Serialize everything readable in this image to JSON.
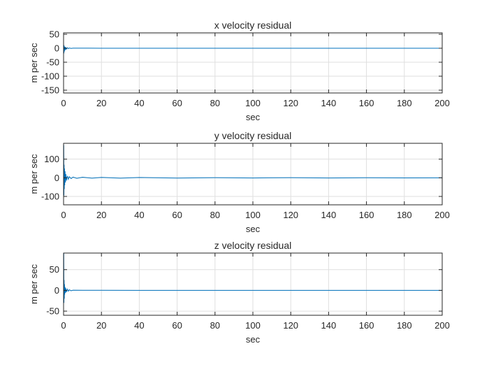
{
  "chart_data": [
    {
      "type": "line",
      "title": "x velocity residual",
      "xlabel": "sec",
      "ylabel": "m per sec",
      "xlim": [
        0,
        200
      ],
      "ylim": [
        -160,
        55
      ],
      "xticks": [
        0,
        20,
        40,
        60,
        80,
        100,
        120,
        140,
        160,
        180,
        200
      ],
      "yticks": [
        -150,
        -100,
        -50,
        0,
        50
      ],
      "grid": true,
      "series": [
        {
          "name": "x velocity residual",
          "color": "#0072BD",
          "x": [
            0,
            0.1,
            0.2,
            0.3,
            0.4,
            0.5,
            0.6,
            0.8,
            1.0,
            1.2,
            1.5,
            2.0,
            2.5,
            3,
            4,
            5,
            10,
            20,
            40,
            60,
            80,
            100,
            120,
            140,
            160,
            180,
            200
          ],
          "y": [
            0,
            12,
            -18,
            9,
            -12,
            6,
            -8,
            5,
            -6,
            3,
            -3,
            2,
            -1.5,
            1,
            -0.5,
            0.3,
            0.2,
            0.1,
            0,
            0,
            0,
            0,
            0,
            0,
            0,
            0,
            0
          ]
        }
      ]
    },
    {
      "type": "line",
      "title": "y velocity residual",
      "xlabel": "sec",
      "ylabel": "m per sec",
      "xlim": [
        0,
        200
      ],
      "ylim": [
        -145,
        185
      ],
      "xticks": [
        0,
        20,
        40,
        60,
        80,
        100,
        120,
        140,
        160,
        180,
        200
      ],
      "yticks": [
        -100,
        0,
        100
      ],
      "grid": true,
      "series": [
        {
          "name": "y velocity residual",
          "color": "#0072BD",
          "x": [
            0,
            0.1,
            0.2,
            0.3,
            0.4,
            0.5,
            0.6,
            0.8,
            1.0,
            1.2,
            1.5,
            2.0,
            2.5,
            3,
            4,
            5,
            7,
            10,
            15,
            20,
            30,
            40,
            60,
            80,
            100,
            120,
            140,
            160,
            180,
            200
          ],
          "y": [
            0,
            175,
            -95,
            70,
            -60,
            50,
            -40,
            35,
            -25,
            20,
            -15,
            10,
            -8,
            6,
            -4,
            4,
            -3,
            3,
            -2,
            2,
            -2,
            1.5,
            -1.5,
            1,
            -1,
            1,
            -1,
            0.5,
            -0.5,
            0
          ]
        }
      ]
    },
    {
      "type": "line",
      "title": "z velocity residual",
      "xlabel": "sec",
      "ylabel": "m per sec",
      "xlim": [
        0,
        200
      ],
      "ylim": [
        -60,
        90
      ],
      "xticks": [
        0,
        20,
        40,
        60,
        80,
        100,
        120,
        140,
        160,
        180,
        200
      ],
      "yticks": [
        -50,
        0,
        50
      ],
      "grid": true,
      "series": [
        {
          "name": "z velocity residual",
          "color": "#0072BD",
          "x": [
            0,
            0.1,
            0.2,
            0.3,
            0.4,
            0.5,
            0.6,
            0.8,
            1.0,
            1.2,
            1.5,
            2.0,
            2.5,
            3,
            4,
            5,
            10,
            20,
            40,
            60,
            80,
            100,
            120,
            140,
            160,
            180,
            200
          ],
          "y": [
            0,
            90,
            -30,
            25,
            -20,
            15,
            -10,
            8,
            -6,
            5,
            -4,
            3,
            -2,
            1.5,
            -1,
            0.5,
            0.3,
            0.2,
            0,
            0,
            0,
            0,
            0,
            0,
            0,
            0,
            0
          ]
        }
      ]
    }
  ]
}
